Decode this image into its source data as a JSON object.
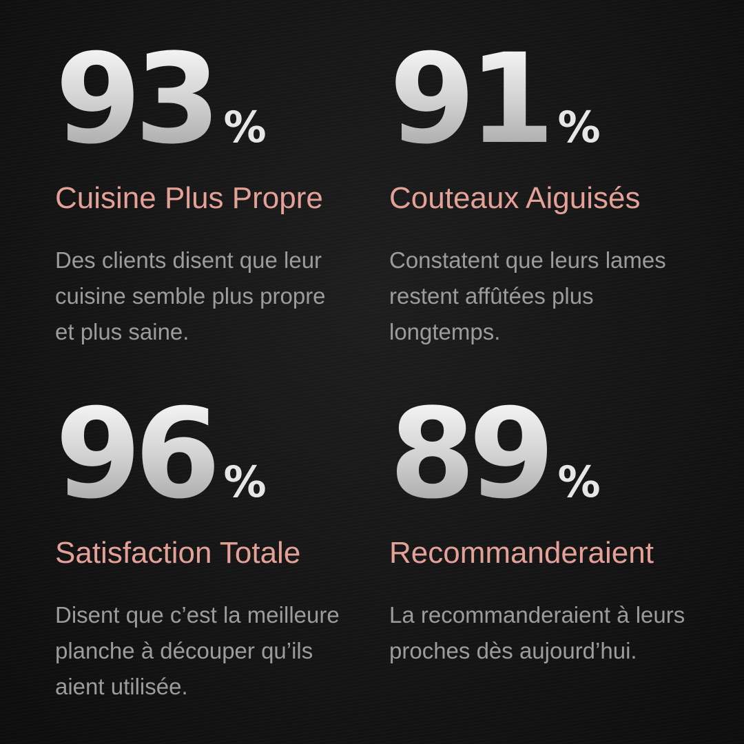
{
  "stats": [
    {
      "value": 93,
      "unit": "%",
      "title": "Cuisine Plus Propre",
      "description": [
        "Des clients disent que leur",
        "cuisine semble plus propre",
        "et plus saine."
      ]
    },
    {
      "value": 91,
      "unit": "%",
      "title": "Couteaux Aiguisés",
      "description": [
        "Constatent que leurs lames",
        "restent affûtées plus",
        "longtemps."
      ]
    },
    {
      "value": 96,
      "unit": "%",
      "title": "Satisfaction Totale",
      "description": [
        "Disent que c’est la meilleure",
        "planche à découper qu’ils",
        "aient utilisée."
      ]
    },
    {
      "value": 89,
      "unit": "%",
      "title": "Recommanderaient",
      "description": [
        "La recommanderaient à leurs",
        "proches dès aujourd’hui."
      ]
    }
  ]
}
